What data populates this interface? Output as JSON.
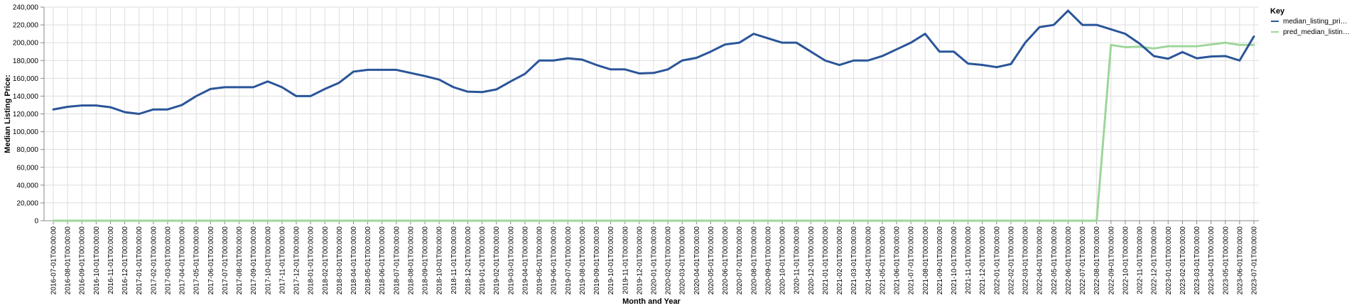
{
  "chart_data": {
    "type": "line",
    "xlabel": "Month and Year",
    "ylabel": "Median Listing Price:",
    "ylim": [
      0,
      240000
    ],
    "y_ticks": [
      0,
      20000,
      40000,
      60000,
      80000,
      100000,
      120000,
      140000,
      160000,
      180000,
      200000,
      220000,
      240000
    ],
    "y_tick_labels": [
      "0",
      "20,000",
      "40,000",
      "60,000",
      "80,000",
      "100,000",
      "120,000",
      "140,000",
      "160,000",
      "180,000",
      "200,000",
      "220,000",
      "240,000"
    ],
    "grid": true,
    "legend": {
      "title": "Key",
      "placement": "top-right",
      "entries": [
        "median_listing_pri…",
        "pred_median_listin…"
      ]
    },
    "x": [
      "2016-07-01T00:00:00",
      "2016-08-01T00:00:00",
      "2016-09-01T00:00:00",
      "2016-10-01T00:00:00",
      "2016-11-01T00:00:00",
      "2016-12-01T00:00:00",
      "2017-01-01T00:00:00",
      "2017-02-01T00:00:00",
      "2017-03-01T00:00:00",
      "2017-04-01T00:00:00",
      "2017-05-01T00:00:00",
      "2017-06-01T00:00:00",
      "2017-07-01T00:00:00",
      "2017-08-01T00:00:00",
      "2017-09-01T00:00:00",
      "2017-10-01T00:00:00",
      "2017-11-01T00:00:00",
      "2017-12-01T00:00:00",
      "2018-01-01T00:00:00",
      "2018-02-01T00:00:00",
      "2018-03-01T00:00:00",
      "2018-04-01T00:00:00",
      "2018-05-01T00:00:00",
      "2018-06-01T00:00:00",
      "2018-07-01T00:00:00",
      "2018-08-01T00:00:00",
      "2018-09-01T00:00:00",
      "2018-10-01T00:00:00",
      "2018-11-01T00:00:00",
      "2018-12-01T00:00:00",
      "2019-01-01T00:00:00",
      "2019-02-01T00:00:00",
      "2019-03-01T00:00:00",
      "2019-04-01T00:00:00",
      "2019-05-01T00:00:00",
      "2019-06-01T00:00:00",
      "2019-07-01T00:00:00",
      "2019-08-01T00:00:00",
      "2019-09-01T00:00:00",
      "2019-10-01T00:00:00",
      "2019-11-01T00:00:00",
      "2019-12-01T00:00:00",
      "2020-01-01T00:00:00",
      "2020-02-01T00:00:00",
      "2020-03-01T00:00:00",
      "2020-04-01T00:00:00",
      "2020-05-01T00:00:00",
      "2020-06-01T00:00:00",
      "2020-07-01T00:00:00",
      "2020-08-01T00:00:00",
      "2020-09-01T00:00:00",
      "2020-10-01T00:00:00",
      "2020-11-01T00:00:00",
      "2020-12-01T00:00:00",
      "2021-01-01T00:00:00",
      "2021-02-01T00:00:00",
      "2021-03-01T00:00:00",
      "2021-04-01T00:00:00",
      "2021-05-01T00:00:00",
      "2021-06-01T00:00:00",
      "2021-07-01T00:00:00",
      "2021-08-01T00:00:00",
      "2021-09-01T00:00:00",
      "2021-10-01T00:00:00",
      "2021-11-01T00:00:00",
      "2021-12-01T00:00:00",
      "2022-01-01T00:00:00",
      "2022-02-01T00:00:00",
      "2022-03-01T00:00:00",
      "2022-04-01T00:00:00",
      "2022-05-01T00:00:00",
      "2022-06-01T00:00:00",
      "2022-07-01T00:00:00",
      "2022-08-01T00:00:00",
      "2022-09-01T00:00:00",
      "2022-10-01T00:00:00",
      "2022-11-01T00:00:00",
      "2022-12-01T00:00:00",
      "2023-01-01T00:00:00",
      "2023-02-01T00:00:00",
      "2023-03-01T00:00:00",
      "2023-04-01T00:00:00",
      "2023-05-01T00:00:00",
      "2023-06-01T00:00:00",
      "2023-07-01T00:00:00"
    ],
    "series": [
      {
        "name": "median_listing_pri…",
        "color": "#2a5599",
        "values": [
          125000,
          128000,
          129500,
          129500,
          127500,
          122000,
          120000,
          125000,
          125000,
          130000,
          140000,
          148000,
          150000,
          150000,
          150000,
          156500,
          150000,
          140000,
          140000,
          148000,
          155000,
          167500,
          169500,
          169500,
          169500,
          166000,
          162500,
          158500,
          150000,
          145000,
          144500,
          147500,
          156500,
          165000,
          180000,
          180000,
          182500,
          181000,
          175000,
          170000,
          170000,
          165500,
          166000,
          170000,
          180000,
          183000,
          190000,
          198000,
          200000,
          210000,
          205000,
          200000,
          200000,
          190000,
          180000,
          175000,
          180000,
          180000,
          185000,
          192500,
          200000,
          210000,
          190000,
          190000,
          176500,
          175000,
          172500,
          176000,
          200000,
          217500,
          220000,
          236000,
          220000,
          220000,
          215000,
          210000,
          199000,
          185000,
          182000,
          189500,
          182500,
          184500,
          185000,
          180000,
          207000
        ]
      },
      {
        "name": "pred_median_listin…",
        "color": "#9ed69a",
        "values": [
          0,
          0,
          0,
          0,
          0,
          0,
          0,
          0,
          0,
          0,
          0,
          0,
          0,
          0,
          0,
          0,
          0,
          0,
          0,
          0,
          0,
          0,
          0,
          0,
          0,
          0,
          0,
          0,
          0,
          0,
          0,
          0,
          0,
          0,
          0,
          0,
          0,
          0,
          0,
          0,
          0,
          0,
          0,
          0,
          0,
          0,
          0,
          0,
          0,
          0,
          0,
          0,
          0,
          0,
          0,
          0,
          0,
          0,
          0,
          0,
          0,
          0,
          0,
          0,
          0,
          0,
          0,
          0,
          0,
          0,
          0,
          0,
          0,
          0,
          197500,
          195000,
          195500,
          193500,
          196000,
          196000,
          196000,
          198000,
          200000,
          197500,
          197500
        ]
      }
    ]
  }
}
